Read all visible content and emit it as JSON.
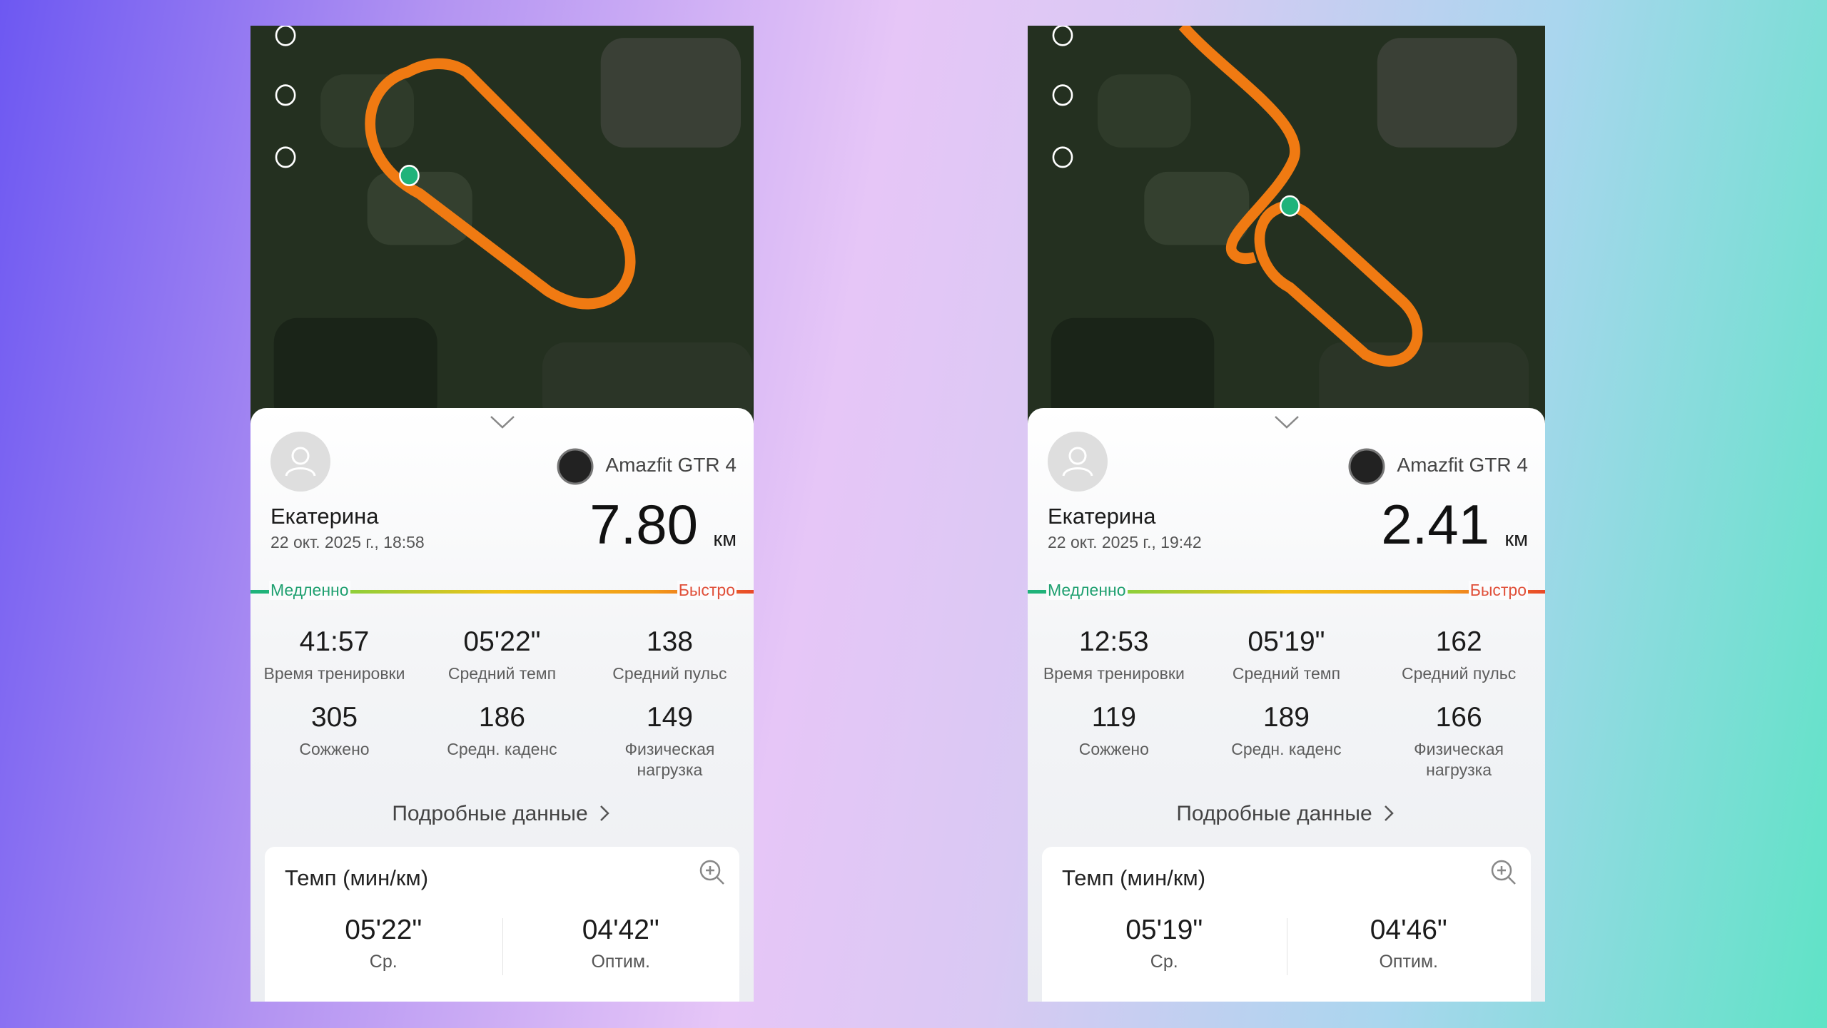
{
  "screens": [
    {
      "device": "Amazfit GTR 4",
      "user": "Екатерина",
      "datetime": "22 окт. 2025 г., 18:58",
      "distance": "7.80",
      "distance_unit": "км",
      "scale_slow": "Медленно",
      "scale_fast": "Быстро",
      "stats": [
        {
          "value": "41:57",
          "label": "Время тренировки"
        },
        {
          "value": "05'22\"",
          "label": "Средний темп"
        },
        {
          "value": "138",
          "label": "Средний пульс"
        },
        {
          "value": "305",
          "label": "Сожжено"
        },
        {
          "value": "186",
          "label": "Средн. каденс"
        },
        {
          "value": "149",
          "label": "Физическая нагрузка"
        }
      ],
      "details": "Подробные данные",
      "pace": {
        "title": "Темп (мин/км)",
        "avg": "05'22\"",
        "avg_label": "Ср.",
        "best": "04'42\"",
        "best_label": "Оптим."
      }
    },
    {
      "device": "Amazfit GTR 4",
      "user": "Екатерина",
      "datetime": "22 окт. 2025 г., 19:42",
      "distance": "2.41",
      "distance_unit": "км",
      "scale_slow": "Медленно",
      "scale_fast": "Быстро",
      "stats": [
        {
          "value": "12:53",
          "label": "Время тренировки"
        },
        {
          "value": "05'19\"",
          "label": "Средний темп"
        },
        {
          "value": "162",
          "label": "Средний пульс"
        },
        {
          "value": "119",
          "label": "Сожжено"
        },
        {
          "value": "189",
          "label": "Средн. каденс"
        },
        {
          "value": "166",
          "label": "Физическая нагрузка"
        }
      ],
      "details": "Подробные данные",
      "pace": {
        "title": "Темп (мин/км)",
        "avg": "05'19\"",
        "avg_label": "Ср.",
        "best": "04'46\"",
        "best_label": "Оптим."
      }
    }
  ]
}
